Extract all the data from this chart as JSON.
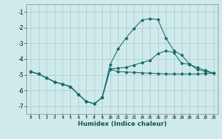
{
  "xlabel": "Humidex (Indice chaleur)",
  "bg_color": "#ceeaea",
  "grid_color": "#aac8c8",
  "line_color": "#1a6b6b",
  "x_values": [
    0,
    1,
    2,
    3,
    4,
    5,
    6,
    7,
    8,
    9,
    10,
    11,
    12,
    13,
    14,
    15,
    16,
    17,
    18,
    19,
    20,
    21,
    22,
    23
  ],
  "line1": [
    -4.8,
    -4.95,
    -5.2,
    -5.45,
    -5.6,
    -5.75,
    -6.25,
    -6.7,
    -6.85,
    -6.45,
    -4.65,
    -4.8,
    -4.82,
    -4.85,
    -4.88,
    -4.9,
    -4.92,
    -4.95,
    -4.95,
    -4.95,
    -4.95,
    -4.95,
    -4.92,
    -4.9
  ],
  "line2": [
    -4.8,
    -4.95,
    -5.2,
    -5.45,
    -5.6,
    -5.75,
    -6.25,
    -6.7,
    -6.85,
    -6.45,
    -4.35,
    -3.35,
    -2.65,
    -2.05,
    -1.5,
    -1.42,
    -1.48,
    -2.65,
    -3.45,
    -3.75,
    -4.35,
    -4.55,
    -4.72,
    -4.9
  ],
  "line3": [
    -4.8,
    -4.95,
    -5.2,
    -5.45,
    -5.6,
    -5.75,
    -6.25,
    -6.7,
    -6.85,
    -6.45,
    -4.62,
    -4.58,
    -4.52,
    -4.38,
    -4.22,
    -4.08,
    -3.65,
    -3.48,
    -3.58,
    -4.28,
    -4.32,
    -4.68,
    -4.78,
    -4.9
  ],
  "ylim": [
    -7.5,
    -0.5
  ],
  "xlim": [
    -0.5,
    23.5
  ],
  "yticks": [
    -7,
    -6,
    -5,
    -4,
    -3,
    -2,
    -1
  ],
  "xticks": [
    0,
    1,
    2,
    3,
    4,
    5,
    6,
    7,
    8,
    9,
    10,
    11,
    12,
    13,
    14,
    15,
    16,
    17,
    18,
    19,
    20,
    21,
    22,
    23
  ],
  "xtick_labels": [
    "0",
    "1",
    "2",
    "3",
    "4",
    "5",
    "6",
    "7",
    "8",
    "9",
    "10",
    "11",
    "12",
    "13",
    "14",
    "15",
    "16",
    "17",
    "18",
    "19",
    "20",
    "21",
    "22",
    "23"
  ]
}
